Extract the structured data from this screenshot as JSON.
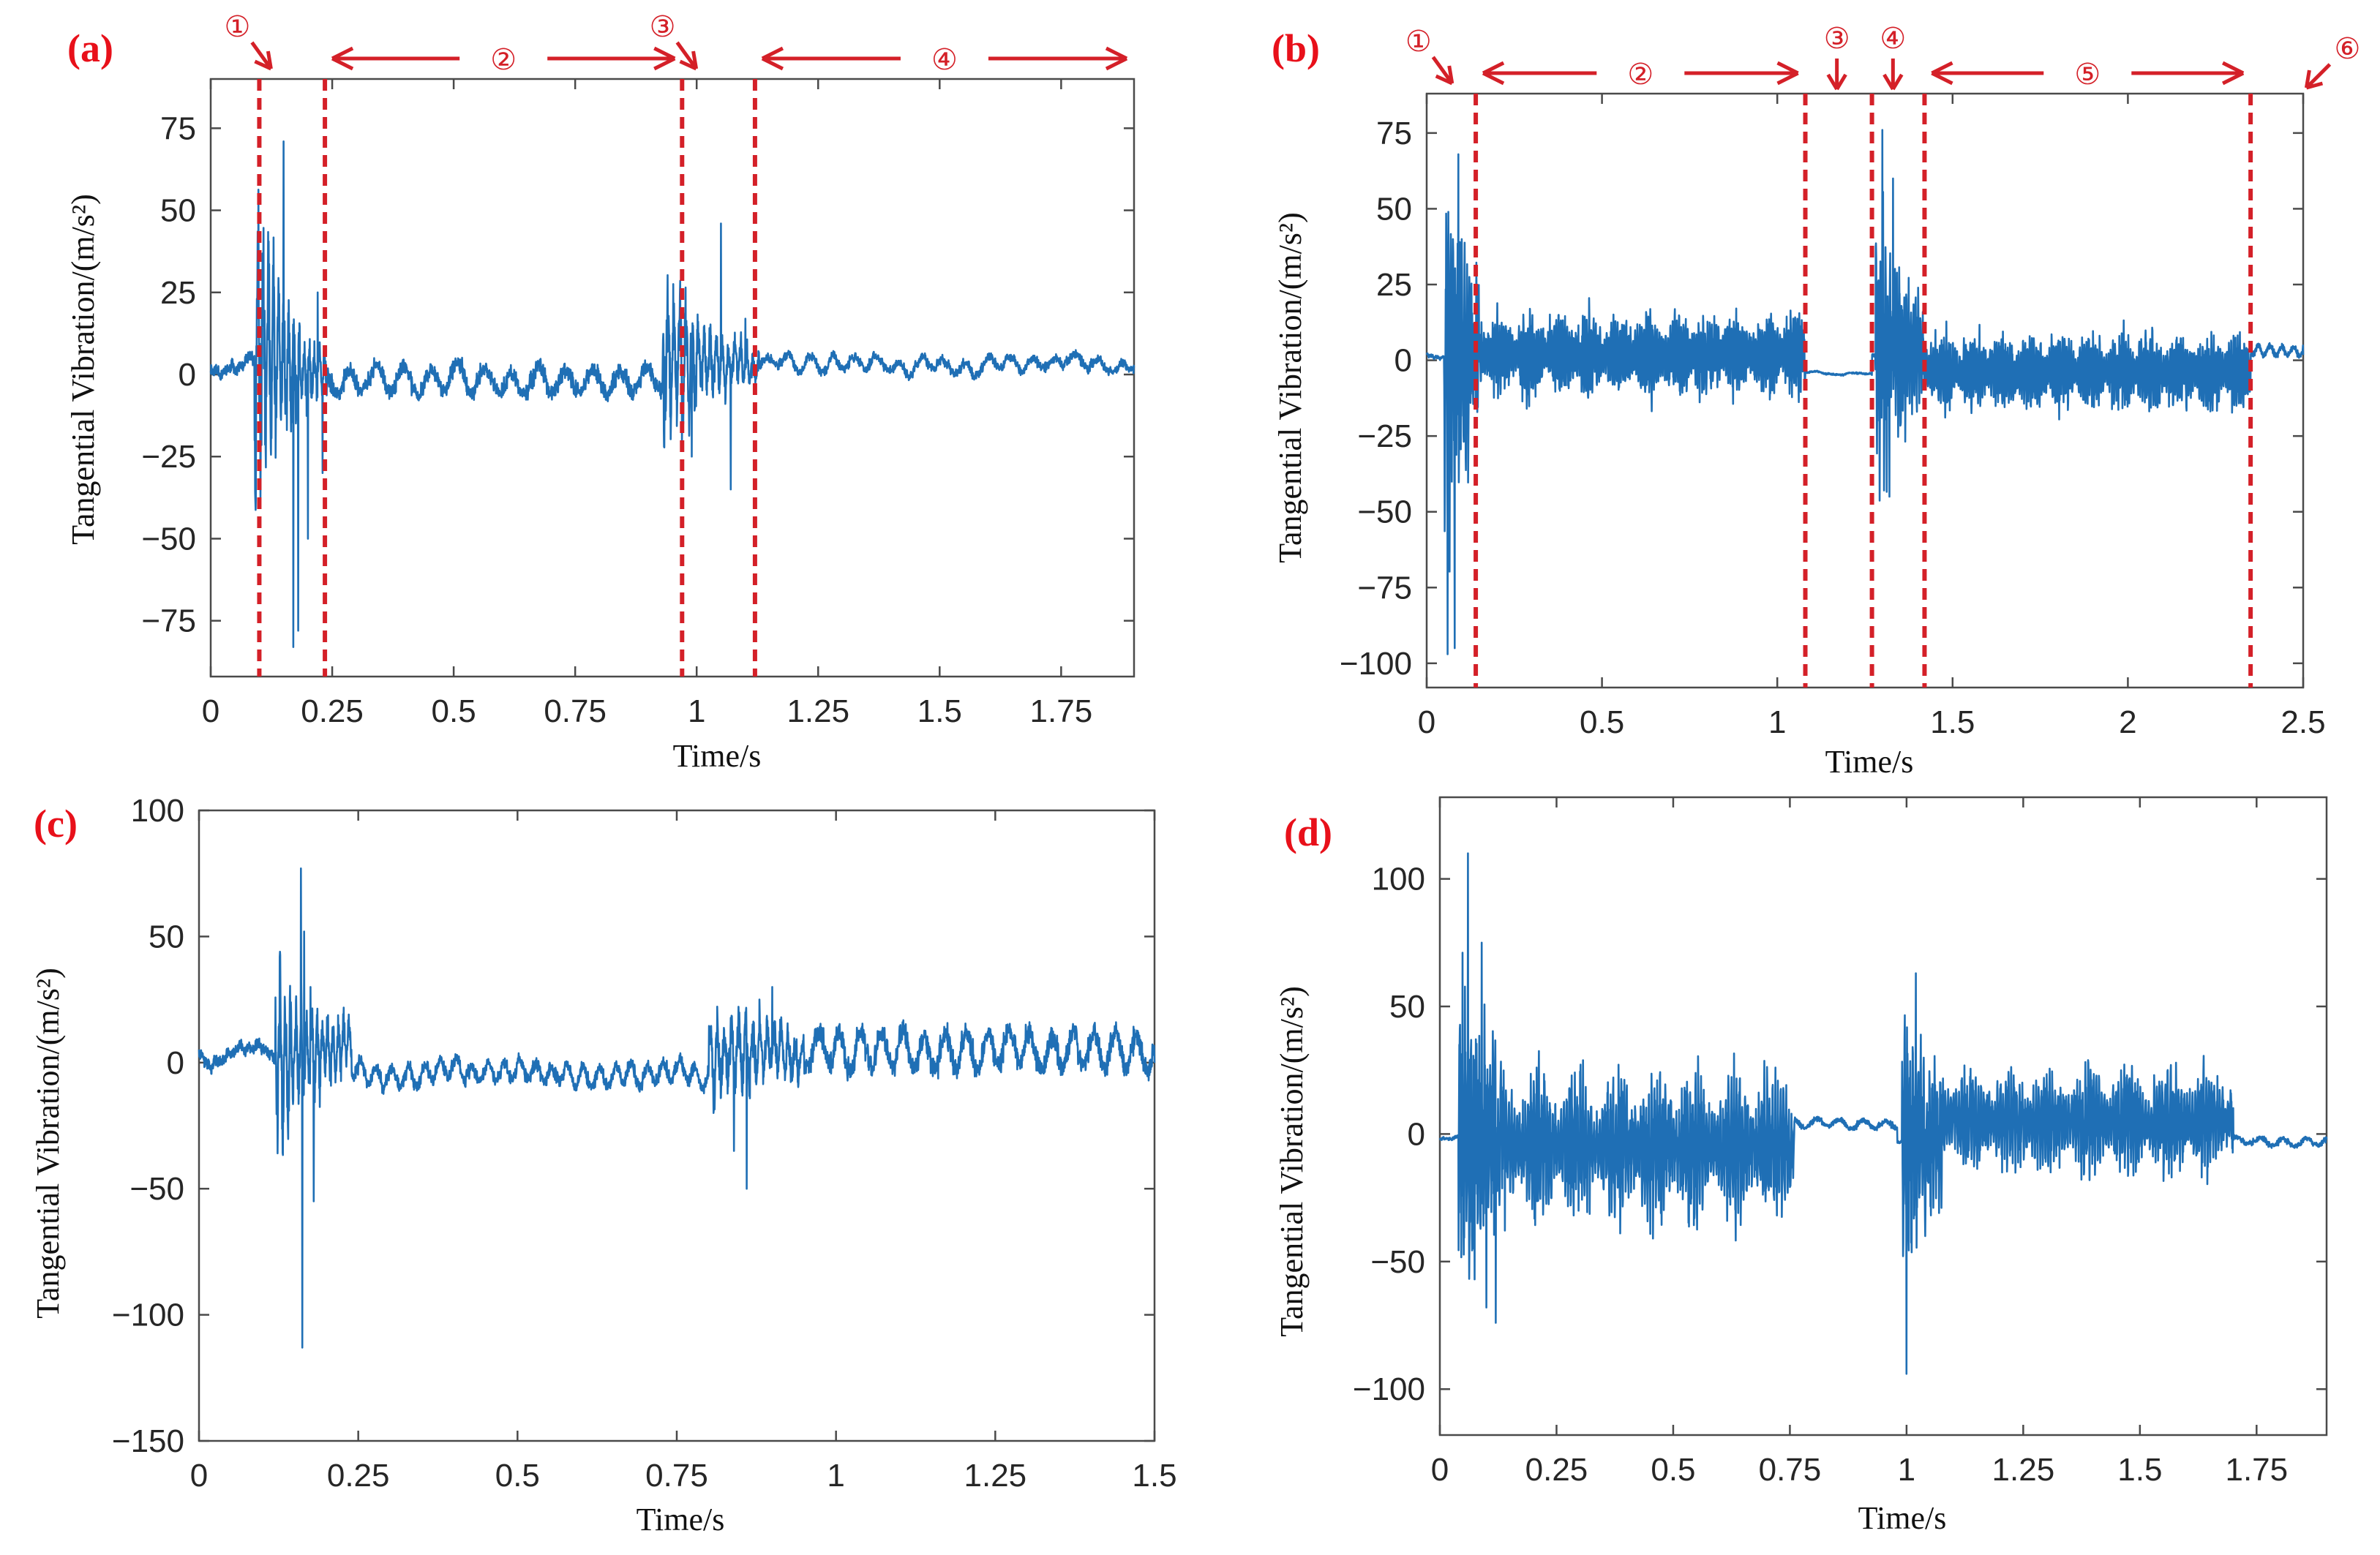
{
  "colors": {
    "line": "#1f6fb5",
    "annotation": "#d42028",
    "panel_label": "#e8101a",
    "axis": "#262626"
  },
  "chart_data": [
    {
      "panel": "(a)",
      "type": "line",
      "xlabel": "Time/s",
      "ylabel": "Tangential Vibration/(m/s²)",
      "xlim": [
        0,
        1.9
      ],
      "ylim": [
        -92,
        90
      ],
      "xticks": [
        0,
        0.25,
        0.5,
        0.75,
        1,
        1.25,
        1.5,
        1.75
      ],
      "xtick_labels": [
        "0",
        "0.25",
        "0.5",
        "0.75",
        "1",
        "1.25",
        "1.5",
        "1.75"
      ],
      "yticks": [
        75,
        50,
        25,
        0,
        -25,
        -50,
        -75
      ],
      "ytick_labels": [
        "75",
        "50",
        "25",
        "0",
        "−25",
        "−50",
        "−75"
      ],
      "series": [
        {
          "name": "Tangential vibration",
          "color": "#1f6fb5"
        }
      ],
      "signal_model": {
        "seed": 11,
        "base_noise": 3,
        "wander": 3,
        "drift": [
          2,
          3
        ],
        "events": [
          {
            "t0": 0.09,
            "t1": 0.24,
            "amp": 34,
            "decay": 14,
            "freq": 95,
            "peaks": [
              [
                0.15,
                71
              ],
              [
                0.17,
                -83
              ],
              [
                0.18,
                -78
              ],
              [
                0.2,
                -50
              ],
              [
                0.22,
                25
              ],
              [
                0.23,
                -30
              ]
            ]
          },
          {
            "t0": 0.93,
            "t1": 1.13,
            "amp": 18,
            "decay": 9,
            "freq": 80,
            "peaks": [
              [
                0.97,
                -20
              ],
              [
                0.99,
                -25
              ],
              [
                1.05,
                46
              ],
              [
                1.07,
                -35
              ],
              [
                1.1,
                17
              ]
            ]
          }
        ],
        "post": [
          {
            "t0": 0.24,
            "t1": 0.93,
            "amp": 5,
            "freq": 18,
            "offset": -2
          },
          {
            "t0": 1.13,
            "t1": 1.9,
            "amp": 2.5,
            "freq": 22,
            "offset": 3
          }
        ]
      },
      "markers": [
        0.1,
        0.235,
        0.97,
        1.12
      ],
      "annotations": [
        {
          "kind": "pointer",
          "text": "①",
          "at": 0.115
        },
        {
          "kind": "span",
          "text": "②",
          "from": 0.235,
          "to": 0.97
        },
        {
          "kind": "pointer",
          "text": "③",
          "at": 0.99
        },
        {
          "kind": "span",
          "text": "④",
          "from": 1.12,
          "to": 1.9
        }
      ]
    },
    {
      "panel": "(b)",
      "type": "line",
      "xlabel": "Time/s",
      "ylabel": "Tangential Vibration/(m/s²)",
      "xlim": [
        0,
        2.5
      ],
      "ylim": [
        -108,
        88
      ],
      "xticks": [
        0,
        0.5,
        1,
        1.5,
        2,
        2.5
      ],
      "xtick_labels": [
        "0",
        "0.5",
        "1",
        "1.5",
        "2",
        "2.5"
      ],
      "yticks": [
        75,
        50,
        25,
        0,
        -25,
        -50,
        -75,
        -100
      ],
      "ytick_labels": [
        "75",
        "50",
        "25",
        "0",
        "−25",
        "−50",
        "−75",
        "−100"
      ],
      "series": [
        {
          "name": "Tangential vibration",
          "color": "#1f6fb5"
        }
      ],
      "signal_model": {
        "seed": 23,
        "base_noise": 1,
        "wander": 1,
        "drift": [
          2,
          2
        ],
        "events": [
          {
            "t0": 0.05,
            "t1": 0.15,
            "amp": 42,
            "decay": 10,
            "freq": 150,
            "peaks": [
              [
                0.06,
                -97
              ],
              [
                0.08,
                -95
              ],
              [
                0.09,
                68
              ],
              [
                0.1,
                40
              ]
            ]
          },
          {
            "t0": 1.28,
            "t1": 1.42,
            "amp": 34,
            "decay": 9,
            "freq": 150,
            "peaks": [
              [
                1.3,
                76
              ],
              [
                1.32,
                -45
              ],
              [
                1.33,
                60
              ]
            ]
          }
        ],
        "post": [
          {
            "t0": 0.15,
            "t1": 1.08,
            "amp": 14,
            "freq": 160,
            "offset": 2,
            "bursty": true
          },
          {
            "t0": 1.08,
            "t1": 1.27,
            "amp": 0.5,
            "freq": 10,
            "offset": -4
          },
          {
            "t0": 1.42,
            "t1": 2.35,
            "amp": 13,
            "freq": 160,
            "offset": -4,
            "bursty": true
          },
          {
            "t0": 2.35,
            "t1": 2.5,
            "amp": 2,
            "freq": 30,
            "offset": 3
          }
        ]
      },
      "markers": [
        0.14,
        1.08,
        1.27,
        1.42,
        2.35
      ],
      "annotations": [
        {
          "kind": "pointer",
          "text": "①",
          "at": 0.06
        },
        {
          "kind": "span",
          "text": "②",
          "from": 0.14,
          "to": 1.08
        },
        {
          "kind": "down",
          "text": "③",
          "at": 1.17
        },
        {
          "kind": "down",
          "text": "④",
          "at": 1.33
        },
        {
          "kind": "span",
          "text": "⑤",
          "from": 1.42,
          "to": 2.35
        },
        {
          "kind": "pointer-left",
          "text": "⑥",
          "at": 2.48
        }
      ]
    },
    {
      "panel": "(c)",
      "type": "line",
      "xlabel": "Time/s",
      "ylabel": "Tangential Vibration/(m/s²)",
      "xlim": [
        0,
        1.5
      ],
      "ylim": [
        -150,
        100
      ],
      "xticks": [
        0,
        0.25,
        0.5,
        0.75,
        1,
        1.25,
        1.5
      ],
      "xtick_labels": [
        "0",
        "0.25",
        "0.5",
        "0.75",
        "1",
        "1.25",
        "1.5"
      ],
      "yticks": [
        100,
        50,
        0,
        -50,
        -100,
        -150
      ],
      "ytick_labels": [
        "100",
        "50",
        "0",
        "−50",
        "−100",
        "−150"
      ],
      "series": [
        {
          "name": "Tangential vibration",
          "color": "#1f6fb5"
        }
      ],
      "signal_model": {
        "seed": 37,
        "base_noise": 4,
        "wander": 4,
        "drift": [
          5,
          5
        ],
        "events": [
          {
            "t0": 0.12,
            "t1": 0.24,
            "amp": 25,
            "decay": 12,
            "freq": 120,
            "peaks": [
              [
                0.16,
                77
              ],
              [
                0.162,
                -113
              ],
              [
                0.165,
                52
              ],
              [
                0.175,
                30
              ],
              [
                0.18,
                -55
              ]
            ]
          },
          {
            "t0": 0.8,
            "t1": 0.95,
            "amp": 14,
            "decay": 6,
            "freq": 90,
            "peaks": [
              [
                0.84,
                -35
              ],
              [
                0.86,
                -50
              ],
              [
                0.88,
                25
              ],
              [
                0.9,
                30
              ]
            ]
          }
        ],
        "post": [
          {
            "t0": 0.24,
            "t1": 0.8,
            "amp": 5,
            "freq": 40,
            "offset": -4
          },
          {
            "t0": 0.95,
            "t1": 1.5,
            "amp": 9,
            "freq": 30,
            "offset": 5
          }
        ]
      },
      "markers": [],
      "annotations": []
    },
    {
      "panel": "(d)",
      "type": "line",
      "xlabel": "Time/s",
      "ylabel": "Tangential Vibration/(m/s²)",
      "xlim": [
        0,
        1.9
      ],
      "ylim": [
        -118,
        132
      ],
      "xticks": [
        0,
        0.25,
        0.5,
        0.75,
        1,
        1.25,
        1.5,
        1.75
      ],
      "xtick_labels": [
        "0",
        "0.25",
        "0.5",
        "0.75",
        "1",
        "1.25",
        "1.5",
        "1.75"
      ],
      "yticks": [
        100,
        50,
        0,
        -50,
        -100
      ],
      "ytick_labels": [
        "100",
        "50",
        "0",
        "−50",
        "−100"
      ],
      "series": [
        {
          "name": "Tangential vibration",
          "color": "#1f6fb5"
        }
      ],
      "signal_model": {
        "seed": 51,
        "base_noise": 1,
        "wander": 1,
        "drift": [
          -2,
          -2
        ],
        "events": [
          {
            "t0": 0.04,
            "t1": 0.14,
            "amp": 45,
            "decay": 8,
            "freq": 170,
            "peaks": [
              [
                0.06,
                110
              ],
              [
                0.07,
                -45
              ],
              [
                0.09,
                75
              ],
              [
                0.1,
                -68
              ],
              [
                0.12,
                -74
              ]
            ]
          },
          {
            "t0": 0.99,
            "t1": 1.08,
            "amp": 32,
            "decay": 8,
            "freq": 170,
            "peaks": [
              [
                1,
                -94
              ],
              [
                1.02,
                63
              ],
              [
                1.04,
                -40
              ]
            ]
          }
        ],
        "post": [
          {
            "t0": 0.14,
            "t1": 0.76,
            "amp": 28,
            "freq": 170,
            "offset": -5,
            "bursty": true
          },
          {
            "t0": 0.76,
            "t1": 0.98,
            "amp": 2,
            "freq": 20,
            "offset": 4
          },
          {
            "t0": 1.08,
            "t1": 1.7,
            "amp": 20,
            "freq": 170,
            "offset": 5,
            "bursty": true
          },
          {
            "t0": 1.7,
            "t1": 1.9,
            "amp": 2,
            "freq": 20,
            "offset": -3
          }
        ]
      },
      "markers": [],
      "annotations": []
    }
  ]
}
